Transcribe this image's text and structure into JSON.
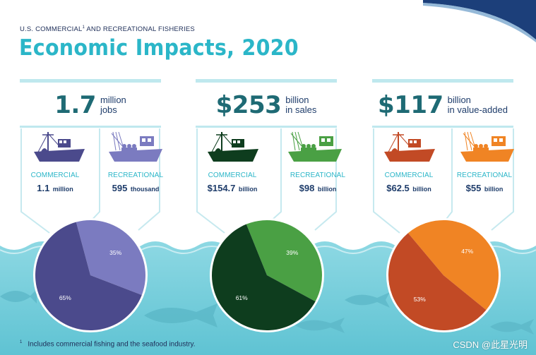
{
  "header": {
    "eyebrow_pre": "U.S. COMMERCIAL",
    "eyebrow_sup": "1",
    "eyebrow_post": " AND RECREATIONAL FISHERIES",
    "title": "Economic Impacts, 2020"
  },
  "colors": {
    "title": "#2bb6c8",
    "navy": "#1f3d6b",
    "water": "#7ccfdc",
    "panel_line": "#bfe8ee"
  },
  "panels": [
    {
      "stat_value": "1.7",
      "stat_unit_line1": "million",
      "stat_unit_line2": "jobs",
      "stat_color": "#1e6a74",
      "commercial": {
        "label": "COMMERCIAL",
        "value": "1.1",
        "unit": "million"
      },
      "recreational": {
        "label": "RECREATIONAL",
        "value": "595",
        "unit": "thousand"
      },
      "label_color": "#2bb6c8",
      "commercial_color": "#4b4a8c",
      "recreational_color": "#7b7bc0",
      "pie_labels": {
        "commercial": "65%",
        "recreational": "35%"
      }
    },
    {
      "stat_value": "$253",
      "stat_unit_line1": "billion",
      "stat_unit_line2": "in sales",
      "stat_color": "#1e6a74",
      "commercial": {
        "label": "COMMERCIAL",
        "value": "$154.7",
        "unit": "billion"
      },
      "recreational": {
        "label": "RECREATIONAL",
        "value": "$98",
        "unit": "billion"
      },
      "label_color": "#2bb6c8",
      "commercial_color": "#0e3d1e",
      "recreational_color": "#4aa044",
      "pie_labels": {
        "commercial": "61%",
        "recreational": "39%"
      }
    },
    {
      "stat_value": "$117",
      "stat_unit_line1": "billion",
      "stat_unit_line2": "in value-added",
      "stat_color": "#1e6a74",
      "commercial": {
        "label": "COMMERCIAL",
        "value": "$62.5",
        "unit": "billion"
      },
      "recreational": {
        "label": "RECREATIONAL",
        "value": "$55",
        "unit": "billion"
      },
      "label_color": "#2bb6c8",
      "commercial_color": "#c24a25",
      "recreational_color": "#f08424",
      "pie_labels": {
        "commercial": "53%",
        "recreational": "47%"
      }
    }
  ],
  "chart_data": [
    {
      "type": "pie",
      "categories": [
        "COMMERCIAL",
        "RECREATIONAL"
      ],
      "values": [
        65,
        35
      ]
    },
    {
      "type": "pie",
      "categories": [
        "COMMERCIAL",
        "RECREATIONAL"
      ],
      "values": [
        61,
        39
      ]
    },
    {
      "type": "pie",
      "categories": [
        "COMMERCIAL",
        "RECREATIONAL"
      ],
      "values": [
        53,
        47
      ]
    }
  ],
  "footnote": {
    "marker": "1",
    "text": "Includes commercial fishing and the seafood industry."
  },
  "watermark": "CSDN @此星光明"
}
